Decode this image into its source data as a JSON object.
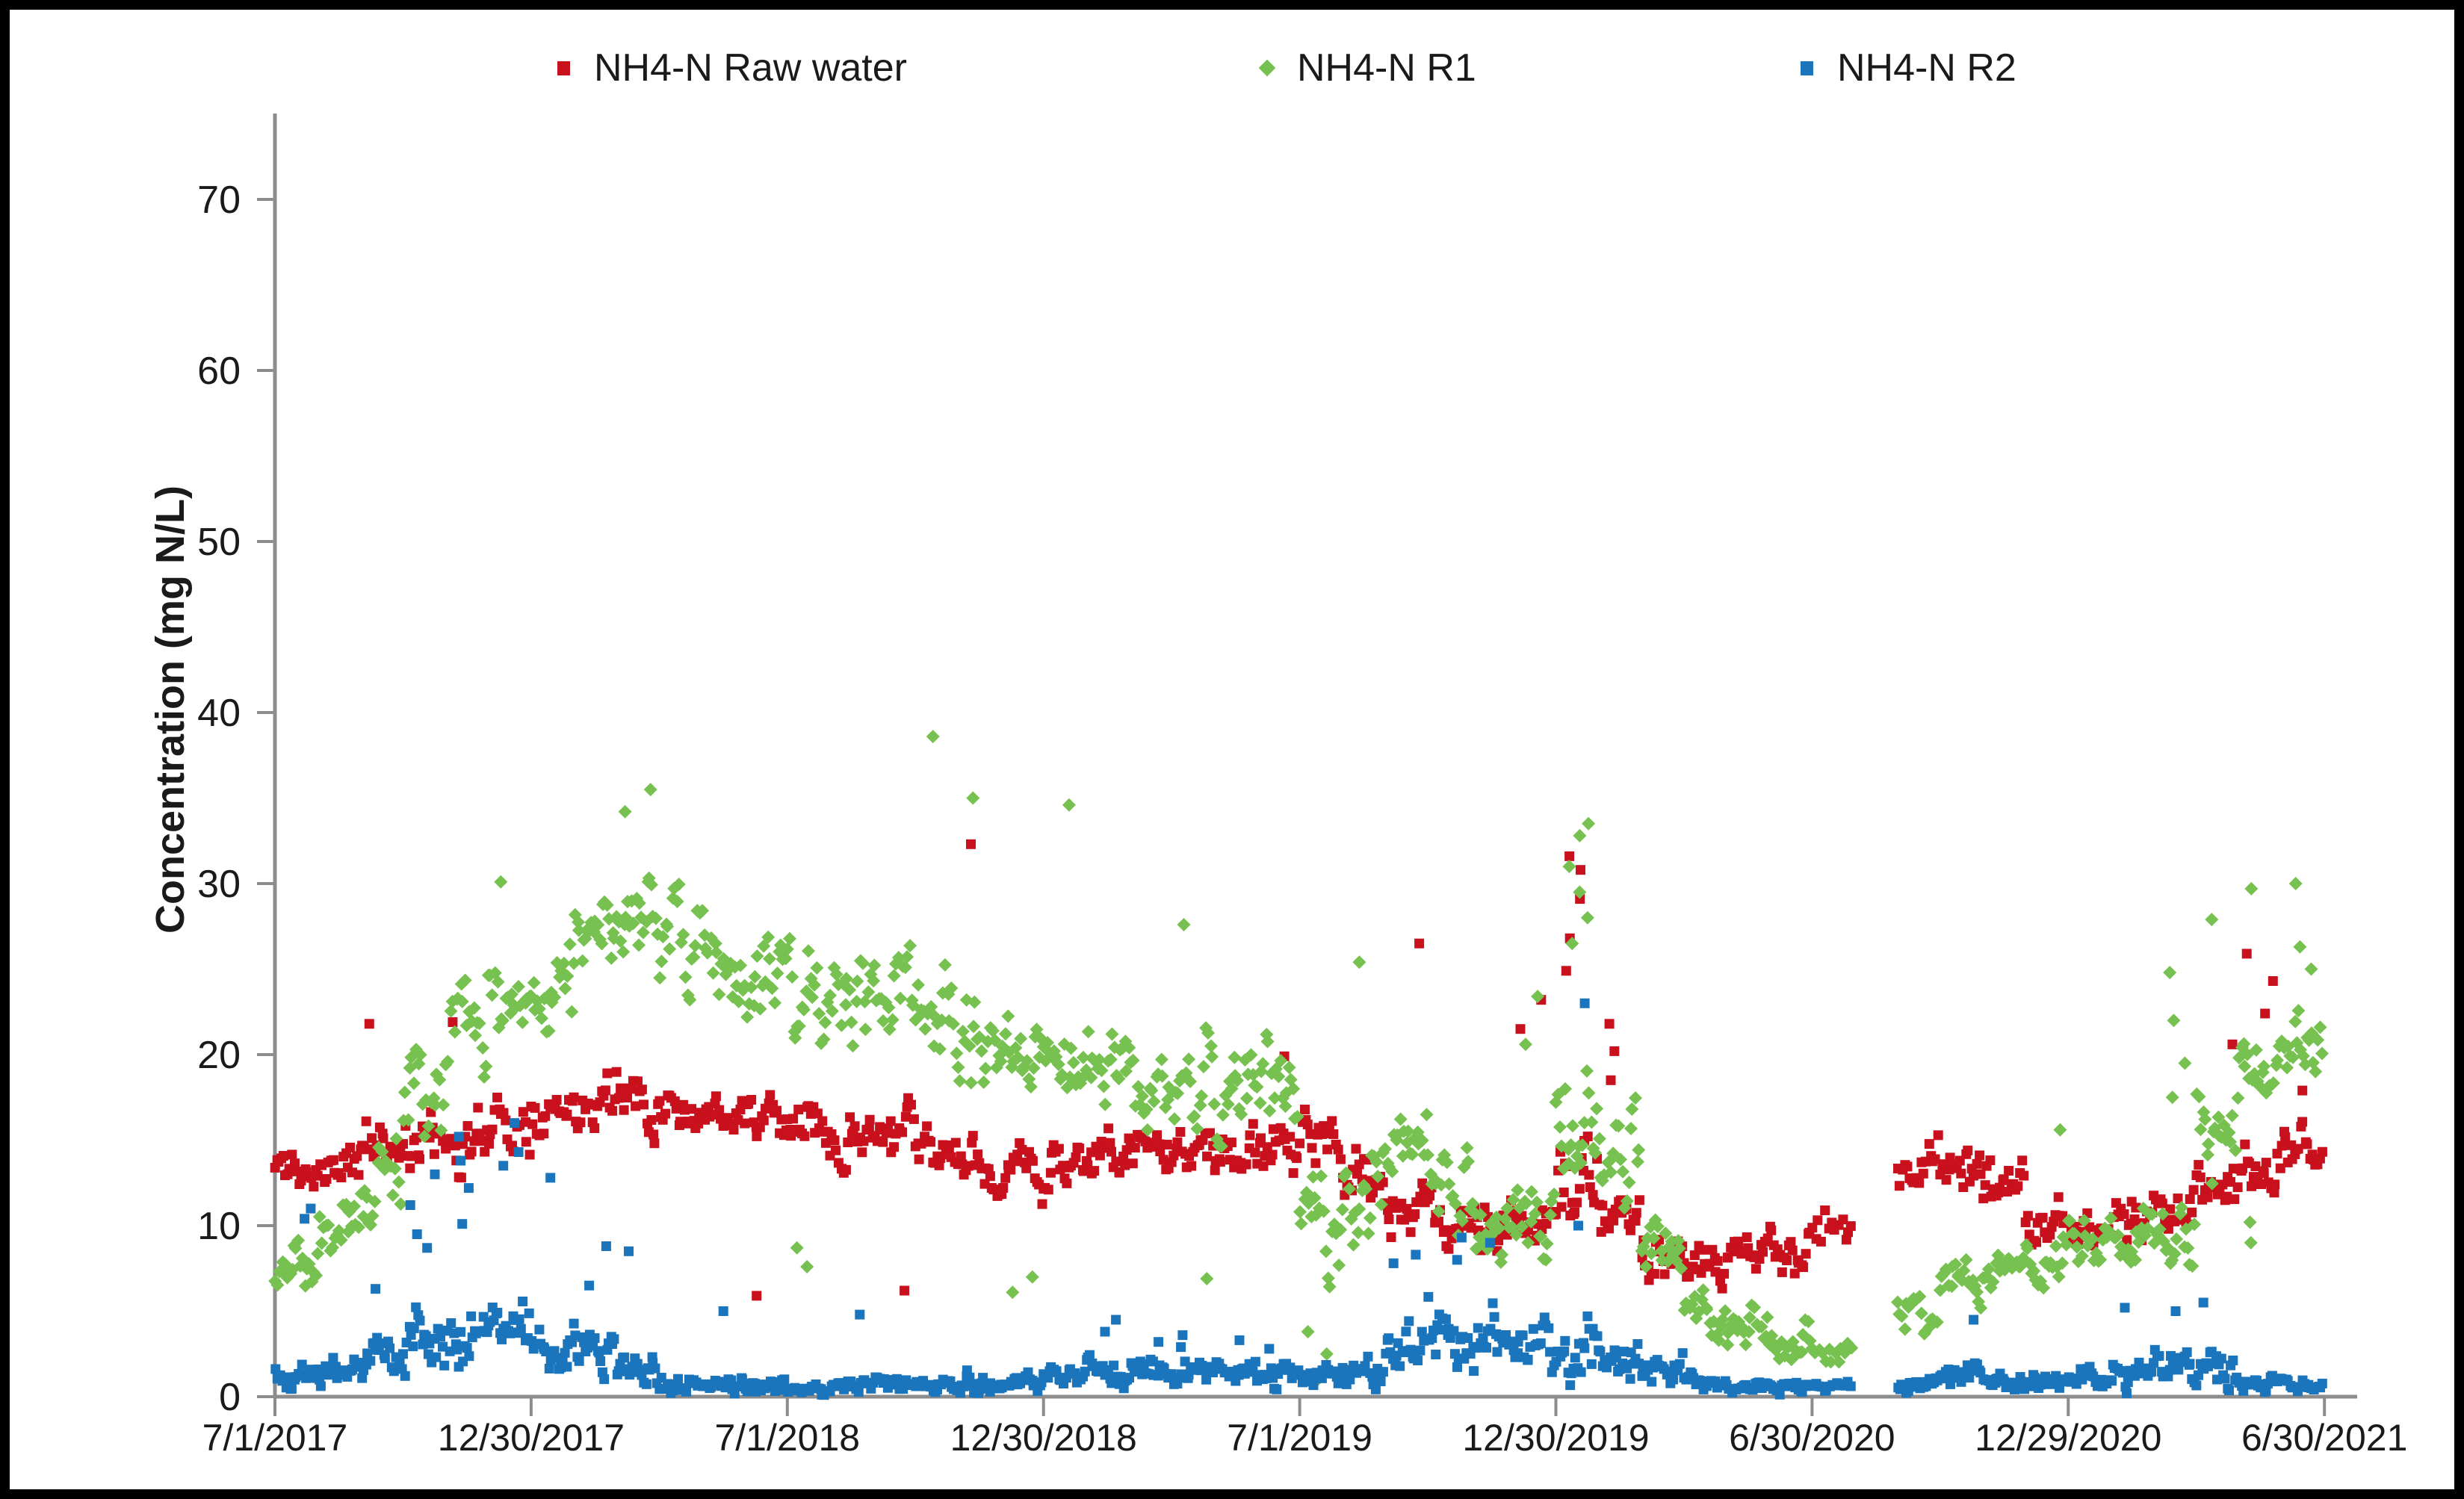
{
  "chart_data": {
    "type": "scatter",
    "ylabel": "Concentration (mg N/L)",
    "ylim": [
      0,
      75
    ],
    "y_ticks": [
      0,
      10,
      20,
      30,
      40,
      50,
      60,
      70
    ],
    "x_ticks": [
      "7/1/2017",
      "12/30/2017",
      "7/1/2018",
      "12/30/2018",
      "7/1/2019",
      "12/30/2019",
      "6/30/2020",
      "12/29/2020",
      "6/30/2021"
    ],
    "x_tick_interval_days": 182.62,
    "axis_color": "#8c8c8c",
    "text_color": "#1a1a1a",
    "legend_position": "top",
    "grid": false,
    "seed": 11,
    "series": [
      {
        "name": "NH4-N Raw water",
        "color": "#c9111d",
        "marker": "square",
        "monthly": [
          [
            20,
            13.2,
            1.6
          ],
          [
            20,
            13.8,
            1.8
          ],
          [
            20,
            14.8,
            2.2
          ],
          [
            20,
            15.0,
            2.0
          ],
          [
            20,
            15.5,
            2.3
          ],
          [
            20,
            16.2,
            2.2
          ],
          [
            20,
            17.0,
            2.0
          ],
          [
            20,
            17.5,
            1.9
          ],
          [
            20,
            17.6,
            1.9
          ],
          [
            20,
            17.0,
            1.7
          ],
          [
            20,
            16.5,
            1.6
          ],
          [
            20,
            16.2,
            1.6
          ],
          [
            20,
            16.0,
            1.7
          ],
          [
            20,
            15.5,
            1.9
          ],
          [
            20,
            15.0,
            2.0
          ],
          [
            20,
            14.2,
            2.0
          ],
          [
            20,
            13.6,
            1.8
          ],
          [
            20,
            13.0,
            1.7
          ],
          [
            20,
            13.4,
            1.7
          ],
          [
            20,
            13.9,
            1.7
          ],
          [
            20,
            14.3,
            1.7
          ],
          [
            20,
            14.4,
            1.7
          ],
          [
            20,
            14.1,
            1.8
          ],
          [
            20,
            14.4,
            2.0
          ],
          [
            20,
            14.9,
            2.1
          ],
          [
            20,
            13.2,
            2.4
          ],
          [
            20,
            11.2,
            2.2
          ],
          [
            20,
            10.1,
            1.8
          ],
          [
            20,
            10.0,
            1.8
          ],
          [
            20,
            10.6,
            2.2
          ],
          [
            22,
            12.5,
            3.4
          ],
          [
            20,
            10.2,
            2.2
          ],
          [
            20,
            8.6,
            1.8
          ],
          [
            20,
            7.6,
            1.7
          ],
          [
            20,
            8.0,
            1.8
          ],
          [
            20,
            8.6,
            2.0
          ],
          [
            13,
            9.6,
            2.2
          ],
          [
            0,
            0,
            0
          ],
          [
            18,
            14.0,
            2.0
          ],
          [
            20,
            13.4,
            2.0
          ],
          [
            20,
            12.0,
            2.0
          ],
          [
            20,
            10.2,
            1.7
          ],
          [
            20,
            9.6,
            1.7
          ],
          [
            20,
            10.2,
            1.9
          ],
          [
            20,
            10.8,
            1.8
          ],
          [
            20,
            12.2,
            2.0
          ],
          [
            20,
            13.0,
            2.0
          ],
          [
            20,
            14.5,
            1.8
          ]
        ],
        "outliers": {
          "2": [
            21.8
          ],
          "4": [
            21.9
          ],
          "11": [
            5.9
          ],
          "14": [
            6.2
          ],
          "16": [
            32.3
          ],
          "23": [
            19.9
          ],
          "26": [
            26.5
          ],
          "29": [
            21.5,
            23.2
          ],
          "30": [
            26.8,
            29.1,
            30.8,
            31.6,
            24.9
          ],
          "31": [
            18.5,
            20.2,
            21.8
          ],
          "45": [
            20.6
          ],
          "46": [
            25.9,
            24.3,
            22.4
          ],
          "47": [
            17.9
          ]
        }
      },
      {
        "name": "NH4-N R1",
        "color": "#76c14f",
        "marker": "diamond",
        "monthly": [
          [
            20,
            7.6,
            2.2
          ],
          [
            20,
            10.0,
            2.6
          ],
          [
            20,
            13.0,
            3.2
          ],
          [
            20,
            17.5,
            3.4
          ],
          [
            20,
            20.8,
            3.4
          ],
          [
            20,
            22.8,
            3.4
          ],
          [
            20,
            24.2,
            3.6
          ],
          [
            22,
            27.0,
            3.6
          ],
          [
            22,
            28.8,
            3.4
          ],
          [
            20,
            27.0,
            3.2
          ],
          [
            20,
            25.2,
            3.2
          ],
          [
            20,
            24.0,
            3.4
          ],
          [
            20,
            23.2,
            3.8
          ],
          [
            20,
            24.0,
            3.4
          ],
          [
            20,
            23.8,
            3.4
          ],
          [
            20,
            21.8,
            3.4
          ],
          [
            20,
            20.2,
            3.4
          ],
          [
            20,
            19.4,
            3.0
          ],
          [
            20,
            19.0,
            3.0
          ],
          [
            20,
            19.0,
            3.0
          ],
          [
            20,
            18.4,
            3.0
          ],
          [
            20,
            19.0,
            3.4
          ],
          [
            20,
            18.0,
            3.6
          ],
          [
            20,
            17.0,
            3.6
          ],
          [
            20,
            10.5,
            4.2
          ],
          [
            20,
            13.0,
            3.6
          ],
          [
            20,
            15.0,
            3.4
          ],
          [
            20,
            12.0,
            3.2
          ],
          [
            20,
            9.6,
            2.6
          ],
          [
            20,
            10.2,
            3.2
          ],
          [
            22,
            16.0,
            5.0
          ],
          [
            20,
            13.0,
            3.6
          ],
          [
            20,
            8.0,
            2.6
          ],
          [
            20,
            5.0,
            1.8
          ],
          [
            20,
            3.6,
            1.5
          ],
          [
            20,
            3.2,
            1.4
          ],
          [
            13,
            2.6,
            1.1
          ],
          [
            0,
            0,
            0
          ],
          [
            18,
            4.6,
            1.8
          ],
          [
            20,
            6.4,
            1.8
          ],
          [
            20,
            7.0,
            1.8
          ],
          [
            20,
            8.0,
            2.2
          ],
          [
            20,
            9.6,
            2.6
          ],
          [
            20,
            9.0,
            2.6
          ],
          [
            20,
            9.0,
            2.5
          ],
          [
            20,
            15.0,
            3.5
          ],
          [
            20,
            19.0,
            2.5
          ],
          [
            20,
            20.5,
            3.0
          ]
        ],
        "outliers": {
          "5": [
            30.1
          ],
          "8": [
            35.5,
            34.2
          ],
          "12": [
            7.6,
            8.7
          ],
          "15": [
            38.6
          ],
          "16": [
            35.0
          ],
          "17": [
            6.1,
            7.0
          ],
          "18": [
            34.6
          ],
          "21": [
            27.6,
            6.9
          ],
          "24": [
            1.2,
            2.5,
            3.8,
            0.8
          ],
          "25": [
            25.4
          ],
          "29": [
            20.6,
            23.4
          ],
          "30": [
            33.5,
            32.8,
            31.0,
            29.5,
            28.0,
            26.5
          ],
          "41": [
            15.6
          ],
          "44": [
            17.5,
            19.5,
            22.0,
            24.8
          ],
          "45": [
            27.9
          ],
          "46": [
            29.7,
            10.2,
            9.0
          ],
          "47": [
            30.0,
            26.3,
            25.0
          ]
        }
      },
      {
        "name": "NH4-N R2",
        "color": "#1b75bc",
        "marker": "square",
        "monthly": [
          [
            22,
            1.1,
            0.9
          ],
          [
            22,
            1.6,
            1.2
          ],
          [
            22,
            2.1,
            1.5
          ],
          [
            22,
            3.1,
            2.1
          ],
          [
            22,
            4.0,
            2.5
          ],
          [
            22,
            3.9,
            2.4
          ],
          [
            22,
            2.6,
            1.6
          ],
          [
            22,
            3.0,
            2.0
          ],
          [
            22,
            1.6,
            1.1
          ],
          [
            22,
            1.0,
            0.8
          ],
          [
            22,
            0.8,
            0.7
          ],
          [
            22,
            0.7,
            0.6
          ],
          [
            22,
            0.6,
            0.5
          ],
          [
            22,
            0.6,
            0.5
          ],
          [
            22,
            0.7,
            0.6
          ],
          [
            22,
            0.7,
            0.6
          ],
          [
            22,
            0.8,
            0.7
          ],
          [
            22,
            0.8,
            0.7
          ],
          [
            22,
            1.2,
            0.9
          ],
          [
            22,
            1.8,
            1.3
          ],
          [
            22,
            1.5,
            1.1
          ],
          [
            22,
            1.5,
            1.2
          ],
          [
            22,
            1.4,
            1.0
          ],
          [
            22,
            1.2,
            0.9
          ],
          [
            22,
            1.0,
            0.8
          ],
          [
            22,
            1.5,
            1.2
          ],
          [
            22,
            2.5,
            1.8
          ],
          [
            22,
            4.0,
            2.5
          ],
          [
            22,
            3.5,
            2.4
          ],
          [
            22,
            3.0,
            2.0
          ],
          [
            22,
            3.0,
            2.4
          ],
          [
            22,
            2.0,
            1.5
          ],
          [
            22,
            1.5,
            1.2
          ],
          [
            22,
            0.8,
            0.6
          ],
          [
            22,
            0.6,
            0.5
          ],
          [
            22,
            0.6,
            0.5
          ],
          [
            14,
            0.6,
            0.5
          ],
          [
            0,
            0,
            0
          ],
          [
            20,
            0.8,
            0.6
          ],
          [
            22,
            1.2,
            1.0
          ],
          [
            22,
            0.8,
            0.6
          ],
          [
            22,
            0.8,
            0.7
          ],
          [
            22,
            1.0,
            0.8
          ],
          [
            22,
            1.5,
            1.2
          ],
          [
            22,
            1.8,
            1.3
          ],
          [
            22,
            2.0,
            1.5
          ],
          [
            22,
            0.8,
            0.6
          ],
          [
            20,
            0.6,
            0.5
          ]
        ],
        "outliers": {
          "0": [
            10.4,
            11.0
          ],
          "2": [
            6.3
          ],
          "3": [
            9.5,
            11.2,
            13.0,
            8.7
          ],
          "4": [
            10.1,
            12.2,
            15.2,
            13.8
          ],
          "5": [
            13.5,
            16.0,
            14.3
          ],
          "6": [
            12.8
          ],
          "7": [
            8.8,
            6.5
          ],
          "8": [
            8.5
          ],
          "10": [
            5.0
          ],
          "13": [
            4.8
          ],
          "19": [
            4.5,
            3.8
          ],
          "20": [
            3.2
          ],
          "21": [
            3.6,
            2.9
          ],
          "22": [
            3.3
          ],
          "23": [
            2.8
          ],
          "26": [
            7.8,
            8.3
          ],
          "27": [
            9.3,
            8.0
          ],
          "28": [
            9.0
          ],
          "30": [
            23.0,
            10.0
          ],
          "39": [
            4.5
          ],
          "43": [
            5.2
          ],
          "44": [
            5.0
          ],
          "45": [
            5.5
          ]
        }
      }
    ]
  }
}
